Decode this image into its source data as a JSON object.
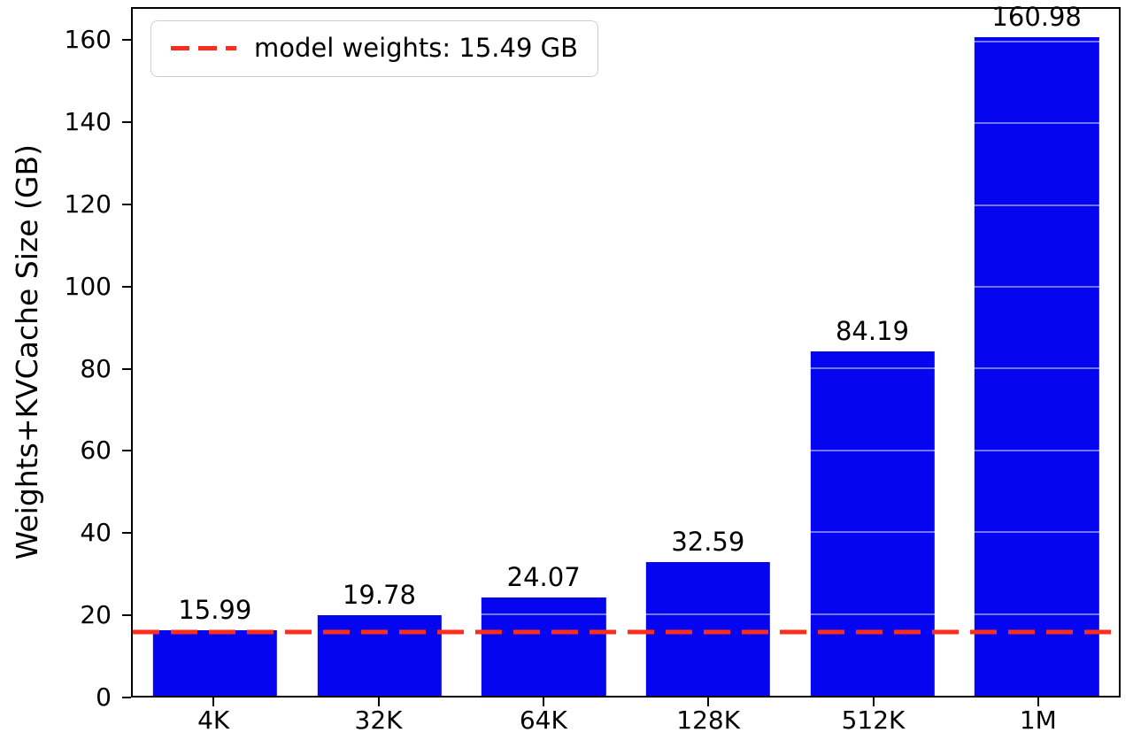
{
  "chart_data": {
    "type": "bar",
    "title": "",
    "categories": [
      "4K",
      "32K",
      "64K",
      "128K",
      "512K",
      "1M"
    ],
    "values": [
      15.99,
      19.78,
      24.07,
      32.59,
      84.19,
      160.98
    ],
    "value_labels": [
      "15.99",
      "19.78",
      "24.07",
      "32.59",
      "84.19",
      "160.98"
    ],
    "xlabel": "",
    "ylabel": "Weights+KVCache Size (GB)",
    "ylim": [
      0,
      168
    ],
    "yticks": [
      0,
      20,
      40,
      60,
      80,
      100,
      120,
      140,
      160
    ],
    "bar_color": "#0505f0",
    "grid": "faint white horizontal gridlines visible over bars at each y tick",
    "legend_position": "upper left",
    "legend_entries": [
      "model weights: 15.49 GB"
    ],
    "threshold_line": {
      "value": 15.49,
      "label": "model weights: 15.49 GB",
      "color": "#fb2e1e",
      "style": "dashed"
    }
  }
}
